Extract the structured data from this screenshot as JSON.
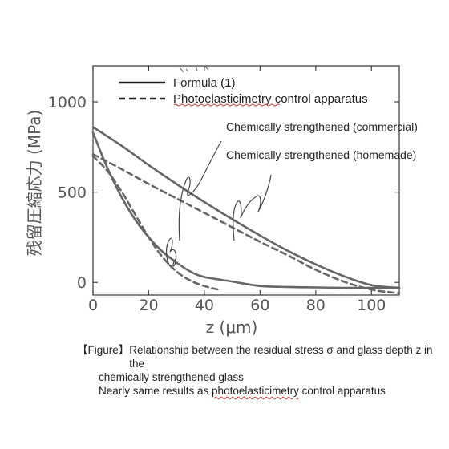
{
  "chart_data": {
    "type": "line",
    "xlabel": "z (μm)",
    "ylabel": "残留圧縮応力 (MPa)",
    "xlim": [
      0,
      110
    ],
    "ylim": [
      -70,
      1200
    ],
    "x_ticks": [
      0,
      20,
      40,
      60,
      80,
      100
    ],
    "y_ticks": [
      0,
      500,
      1000
    ],
    "grid": false,
    "legend": {
      "position": "top-left",
      "entries": [
        {
          "label": "Formula (1)",
          "style": "solid"
        },
        {
          "label": "Photoelasticimetry control apparatus",
          "style": "dashed"
        }
      ]
    },
    "annotations": [
      {
        "text": "Chemically strengthened (commercial)"
      },
      {
        "text": "Chemically strengthened (homemade)"
      }
    ],
    "series": [
      {
        "style": "solid",
        "x": [
          0,
          10,
          20,
          30,
          40,
          50,
          60,
          70,
          80,
          90,
          100,
          110
        ],
        "y": [
          860,
          760,
          650,
          545,
          445,
          350,
          260,
          175,
          100,
          35,
          -15,
          -30
        ]
      },
      {
        "style": "dashed",
        "x": [
          0,
          10,
          20,
          30,
          40,
          50,
          60,
          70,
          80,
          90,
          100,
          110
        ],
        "y": [
          710,
          630,
          545,
          465,
          385,
          305,
          225,
          150,
          70,
          5,
          -40,
          -60
        ]
      },
      {
        "style": "solid",
        "x": [
          0,
          5,
          10,
          15,
          20,
          25,
          30,
          35,
          40,
          50,
          60,
          70,
          80,
          90,
          100,
          110
        ],
        "y": [
          830,
          640,
          480,
          350,
          250,
          170,
          110,
          60,
          30,
          5,
          -20,
          -25,
          -28,
          -30,
          -30,
          -30
        ]
      },
      {
        "style": "dashed",
        "x": [
          0,
          5,
          10,
          15,
          20,
          25,
          30,
          35,
          40,
          45
        ],
        "y": [
          700,
          620,
          510,
          380,
          250,
          140,
          60,
          10,
          -20,
          -40
        ]
      }
    ],
    "colors": {
      "line": "#666666",
      "axis": "#444444",
      "legend_line": "#222222",
      "squiggle": "#d04040"
    }
  },
  "caption": {
    "line1_lead": "【Figure】",
    "line1_text": "Relationship between the residual stress σ and glass depth z in the",
    "line2": "chemically strengthened glass",
    "line3_pre": "Nearly same results as ",
    "line3_link": "photoelasticimetry",
    "line3_post": " control apparatus"
  }
}
